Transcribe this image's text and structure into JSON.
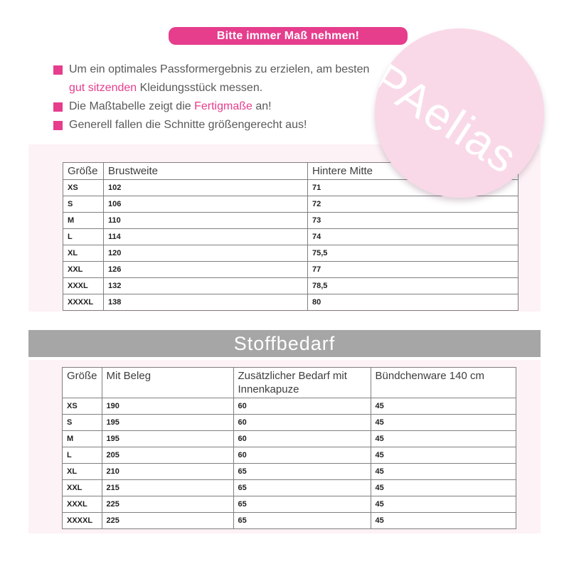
{
  "colors": {
    "accent_pink": "#e63d8d",
    "pale_pink_band": "#fdf2f6",
    "watermark_pink": "#f9d9e8",
    "section_gray": "#a6a6a6",
    "body_text_gray": "#595959",
    "table_border_gray": "#7f7f7f"
  },
  "banner": {
    "label": "Bitte immer Maß nehmen!"
  },
  "notes": {
    "item1_line1": "Um ein optimales Passformergebnis zu erzielen, am besten",
    "item1_line2_highlight": "gut sitzenden",
    "item1_line2_rest": " Kleidungsstück messen.",
    "item2_pre": "Die Maßtabelle zeigt die ",
    "item2_highlight": "Fertigmaße",
    "item2_post": " an!",
    "item3": "Generell fallen die Schnitte größengerecht aus!"
  },
  "watermark": {
    "label": "PAelias"
  },
  "measurement_table": {
    "headers": [
      "Größe",
      "Brustweite",
      "Hintere Mitte"
    ],
    "rows": [
      [
        "XS",
        "102",
        "71"
      ],
      [
        "S",
        "106",
        "72"
      ],
      [
        "M",
        "110",
        "73"
      ],
      [
        "L",
        "114",
        "74"
      ],
      [
        "XL",
        "120",
        "75,5"
      ],
      [
        "XXL",
        "126",
        "77"
      ],
      [
        "XXXL",
        "132",
        "78,5"
      ],
      [
        "XXXXL",
        "138",
        "80"
      ]
    ]
  },
  "section_title": "Stoffbedarf",
  "fabric_table": {
    "headers": [
      "Größe",
      "Mit Beleg",
      "Zusätzlicher Bedarf mit Innenkapuze",
      "Bündchenware 140 cm"
    ],
    "rows": [
      [
        "XS",
        "190",
        "60",
        "45"
      ],
      [
        "S",
        "195",
        "60",
        "45"
      ],
      [
        "M",
        "195",
        "60",
        "45"
      ],
      [
        "L",
        "205",
        "60",
        "45"
      ],
      [
        "XL",
        "210",
        "65",
        "45"
      ],
      [
        "XXL",
        "215",
        "65",
        "45"
      ],
      [
        "XXXL",
        "225",
        "65",
        "45"
      ],
      [
        "XXXXL",
        "225",
        "65",
        "45"
      ]
    ]
  }
}
